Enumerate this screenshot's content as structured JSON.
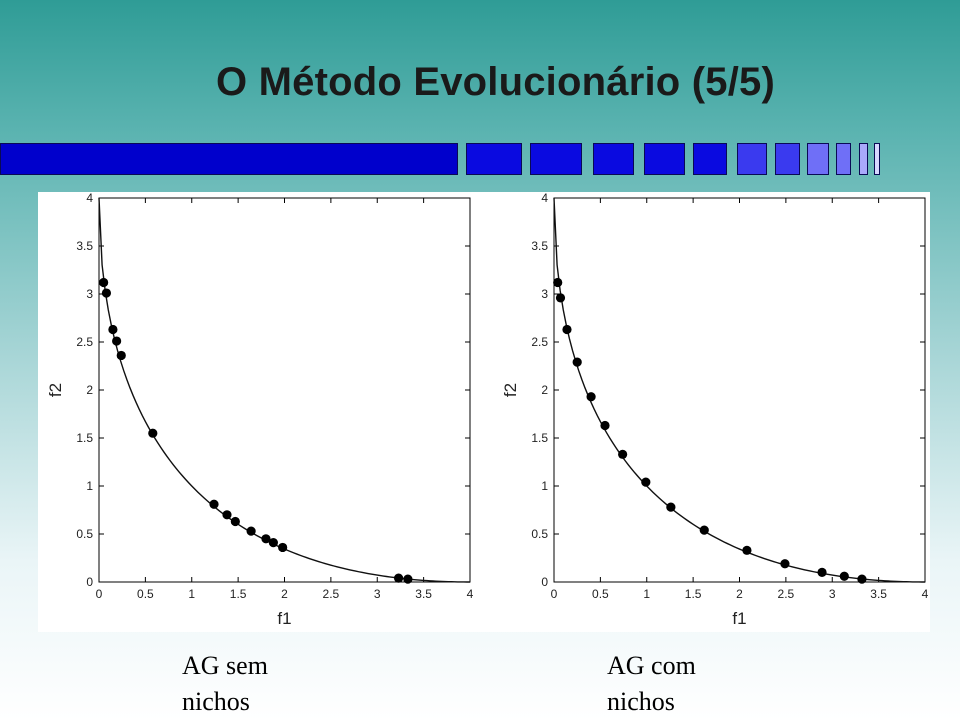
{
  "slide": {
    "title": "O Método Evolucionário (5/5)",
    "accent_colors": [
      "#0000cc",
      "#0a0ae0",
      "#3a3aef",
      "#6f6ff7",
      "#a9a9fb",
      "#d8d8ff"
    ]
  },
  "captions": [
    {
      "line1": "AG sem",
      "line2": "nichos"
    },
    {
      "line1": "AG com",
      "line2": "nichos"
    }
  ],
  "chart_data": [
    {
      "type": "scatter",
      "title": "",
      "xlabel": "f1",
      "ylabel": "f2",
      "xlim": [
        0,
        4
      ],
      "ylim": [
        0,
        4
      ],
      "xticks": [
        "0",
        "0.5",
        "1",
        "1.5",
        "2",
        "2.5",
        "3",
        "3.5",
        "4"
      ],
      "yticks": [
        "0",
        "0.5",
        "1",
        "1.5",
        "2",
        "2.5",
        "3",
        "3.5",
        "4"
      ],
      "grid": false,
      "curve": "pareto front (decreasing curve from (0,4) to (4,0))",
      "points": [
        [
          0.05,
          3.12
        ],
        [
          0.08,
          3.01
        ],
        [
          0.15,
          2.63
        ],
        [
          0.19,
          2.51
        ],
        [
          0.24,
          2.36
        ],
        [
          0.58,
          1.55
        ],
        [
          1.24,
          0.81
        ],
        [
          1.38,
          0.7
        ],
        [
          1.47,
          0.63
        ],
        [
          1.64,
          0.53
        ],
        [
          1.8,
          0.45
        ],
        [
          1.88,
          0.41
        ],
        [
          1.98,
          0.36
        ],
        [
          3.23,
          0.04
        ],
        [
          3.33,
          0.03
        ]
      ]
    },
    {
      "type": "scatter",
      "title": "",
      "xlabel": "f1",
      "ylabel": "f2",
      "xlim": [
        0,
        4
      ],
      "ylim": [
        0,
        4
      ],
      "xticks": [
        "0",
        "0.5",
        "1",
        "1.5",
        "2",
        "2.5",
        "3",
        "3.5",
        "4"
      ],
      "yticks": [
        "0",
        "0.5",
        "1",
        "1.5",
        "2",
        "2.5",
        "3",
        "3.5",
        "4"
      ],
      "grid": false,
      "curve": "pareto front (decreasing curve from (0,4) to (4,0))",
      "points": [
        [
          0.04,
          3.12
        ],
        [
          0.07,
          2.96
        ],
        [
          0.14,
          2.63
        ],
        [
          0.25,
          2.29
        ],
        [
          0.4,
          1.93
        ],
        [
          0.55,
          1.63
        ],
        [
          0.74,
          1.33
        ],
        [
          0.99,
          1.04
        ],
        [
          1.26,
          0.78
        ],
        [
          1.62,
          0.54
        ],
        [
          2.08,
          0.33
        ],
        [
          2.49,
          0.19
        ],
        [
          2.89,
          0.1
        ],
        [
          3.13,
          0.06
        ],
        [
          3.32,
          0.03
        ]
      ]
    }
  ]
}
